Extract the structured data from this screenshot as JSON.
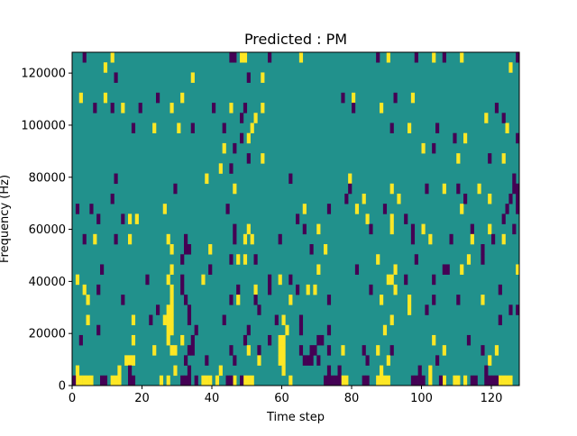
{
  "chart_data": {
    "type": "heatmap",
    "title": "Predicted : PM",
    "xlabel": "Time step",
    "ylabel": "Frequency (Hz)",
    "xlim": [
      0,
      128
    ],
    "ylim": [
      0,
      128000
    ],
    "xticks": [
      0,
      20,
      40,
      60,
      80,
      100,
      120
    ],
    "xtick_labels": [
      "0",
      "20",
      "40",
      "60",
      "80",
      "100",
      "120"
    ],
    "yticks": [
      0,
      20000,
      40000,
      60000,
      80000,
      100000,
      120000
    ],
    "ytick_labels": [
      "0",
      "20000",
      "40000",
      "60000",
      "80000",
      "100000",
      "120000"
    ],
    "n_time_steps": 128,
    "n_freq_bins": 33,
    "background_value": 0,
    "value_colors": {
      "-1": "#440154",
      "0": "#21918c",
      "1": "#fde725"
    },
    "grid": false,
    "rows_top_to_bottom": [
      {
        "pos": [
          11,
          48,
          49,
          65,
          90,
          103,
          111
        ],
        "neg": [
          3,
          45,
          46,
          56,
          87,
          98,
          106,
          127
        ]
      },
      {
        "pos": [
          9,
          125
        ],
        "neg": []
      },
      {
        "pos": [
          34,
          54
        ],
        "neg": [
          12,
          50
        ]
      },
      {
        "pos": [],
        "neg": []
      },
      {
        "pos": [
          2,
          9,
          31,
          80,
          97
        ],
        "neg": [
          24,
          77,
          92
        ]
      },
      {
        "pos": [
          14,
          28,
          45,
          54,
          88
        ],
        "neg": [
          6,
          11,
          19,
          40,
          49,
          80,
          121
        ]
      },
      {
        "pos": [
          52,
          118
        ],
        "neg": [
          48,
          123
        ]
      },
      {
        "pos": [
          23,
          30,
          51,
          96,
          124
        ],
        "neg": [
          17,
          34,
          43,
          91,
          104
        ]
      },
      {
        "pos": [
          50,
          112
        ],
        "neg": [
          48,
          109,
          127
        ]
      },
      {
        "pos": [
          43,
          100
        ],
        "neg": [
          46,
          103
        ]
      },
      {
        "pos": [
          54,
          110,
          123
        ],
        "neg": [
          50,
          119
        ]
      },
      {
        "pos": [
          42
        ],
        "neg": [
          45
        ]
      },
      {
        "pos": [
          38,
          79
        ],
        "neg": [
          12,
          62,
          126
        ]
      },
      {
        "pos": [
          46,
          91,
          106,
          116
        ],
        "neg": [
          29,
          79,
          101,
          110,
          126,
          127
        ]
      },
      {
        "pos": [
          83,
          93,
          119
        ],
        "neg": [
          11,
          78,
          112,
          125,
          127
        ]
      },
      {
        "pos": [
          26,
          66,
          81,
          111
        ],
        "neg": [
          1,
          5,
          44,
          73,
          89,
          124,
          127
        ]
      },
      {
        "pos": [
          16,
          18,
          84,
          91
        ],
        "neg": [
          7,
          14,
          64,
          95,
          123
        ]
      },
      {
        "pos": [
          50,
          70,
          91,
          100,
          119
        ],
        "neg": [
          46,
          66,
          85,
          97,
          114,
          126
        ]
      },
      {
        "pos": [
          6,
          16,
          27,
          49,
          51,
          102,
          114,
          123
        ],
        "neg": [
          3,
          12,
          32,
          46,
          59,
          97,
          108,
          120
        ]
      },
      {
        "pos": [
          28,
          39,
          72
        ],
        "neg": [
          32,
          33,
          68,
          117
        ]
      },
      {
        "pos": [
          47,
          49,
          87,
          113
        ],
        "neg": [
          31,
          45,
          52,
          98,
          117
        ]
      },
      {
        "pos": [
          28,
          70,
          92,
          111,
          127
        ],
        "neg": [
          8,
          39,
          81,
          106,
          107
        ]
      },
      {
        "pos": [
          1,
          27,
          37,
          59,
          90,
          91
        ],
        "neg": [
          21,
          31,
          56,
          62,
          95,
          103
        ]
      },
      {
        "pos": [
          3,
          28,
          52,
          67,
          69,
          92
        ],
        "neg": [
          7,
          31,
          47,
          56,
          64,
          85,
          122
        ]
      },
      {
        "pos": [
          4,
          28,
          47,
          62,
          88,
          96,
          117
        ],
        "neg": [
          14,
          32,
          45,
          52,
          73,
          103,
          110
        ]
      },
      {
        "pos": [
          27,
          28,
          96
        ],
        "neg": [
          24,
          33,
          53,
          101,
          125,
          127
        ]
      },
      {
        "pos": [
          4,
          17,
          26,
          27,
          28,
          60,
          91
        ],
        "neg": [
          22,
          33,
          43,
          58,
          65,
          122
        ]
      },
      {
        "pos": [
          27,
          28,
          61,
          89
        ],
        "neg": [
          7,
          35,
          50,
          65,
          73
        ]
      },
      {
        "pos": [
          17,
          27,
          31,
          59,
          60,
          103
        ],
        "neg": [
          2,
          34,
          49,
          56,
          70,
          71,
          113
        ]
      },
      {
        "pos": [
          23,
          28,
          29,
          50,
          59,
          60,
          77,
          87,
          106,
          121
        ],
        "neg": [
          33,
          34,
          45,
          53,
          65,
          68,
          69,
          73,
          83,
          91,
          117
        ]
      },
      {
        "pos": [
          15,
          16,
          17,
          53,
          59,
          60,
          90,
          119
        ],
        "neg": [
          32,
          38,
          46,
          66,
          67,
          68,
          70,
          84,
          104
        ]
      },
      {
        "pos": [
          1,
          13,
          29,
          42,
          60,
          88,
          102
        ],
        "neg": [
          16,
          33,
          73,
          76,
          99,
          118
        ]
      },
      {
        "pos": [
          1,
          2,
          3,
          4,
          5,
          11,
          12,
          13,
          25,
          27,
          37,
          38,
          39,
          41,
          46,
          49,
          50,
          51,
          62,
          77,
          78,
          87,
          88,
          89,
          90,
          102,
          106,
          109,
          110,
          112,
          122,
          123,
          124,
          125
        ],
        "neg": [
          0,
          8,
          9,
          16,
          17,
          31,
          32,
          33,
          35,
          44,
          45,
          48,
          72,
          73,
          74,
          75,
          76,
          83,
          84,
          97,
          98,
          99,
          100,
          105,
          114,
          115,
          118,
          119,
          120,
          121
        ]
      }
    ]
  }
}
